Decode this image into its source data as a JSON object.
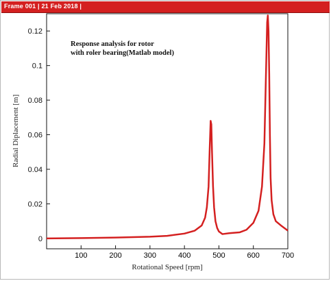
{
  "header": {
    "frame_label": "Frame 001",
    "date_label": "21 Feb 2018"
  },
  "colors": {
    "header_bg": "#d42020",
    "curve": "#d42020",
    "background": "#ffffff"
  },
  "chart_data": {
    "type": "line",
    "title_lines": [
      "Response analysis for rotor",
      "with roler bearing(Matlab model)"
    ],
    "xlabel": "Rotational Speed [rpm]",
    "ylabel": "Radial Diplacement [m]",
    "xlim": [
      0,
      700
    ],
    "ylim": [
      -0.006,
      0.13
    ],
    "xticks": [
      100,
      200,
      300,
      400,
      500,
      600,
      700
    ],
    "yticks": [
      0,
      0.02,
      0.04,
      0.06,
      0.08,
      0.1,
      0.12
    ],
    "ytick_labels": [
      "0",
      "0.02",
      "0.04",
      "0.06",
      "0.08",
      "0.1",
      "0.12"
    ],
    "grid": false,
    "legend": "none",
    "series": [
      {
        "x": [
          0,
          100,
          200,
          300,
          350,
          400,
          430,
          450,
          460,
          465,
          470,
          473,
          476,
          478,
          480,
          483,
          486,
          490,
          495,
          500,
          510,
          530,
          560,
          580,
          600,
          615,
          625,
          632,
          636,
          640,
          642,
          644,
          646,
          648,
          650,
          653,
          658,
          665,
          680,
          700
        ],
        "y": [
          0,
          0.0002,
          0.0005,
          0.001,
          0.0015,
          0.0028,
          0.0045,
          0.0075,
          0.012,
          0.018,
          0.03,
          0.05,
          0.068,
          0.066,
          0.05,
          0.03,
          0.018,
          0.01,
          0.006,
          0.004,
          0.0025,
          0.003,
          0.0035,
          0.005,
          0.009,
          0.016,
          0.03,
          0.055,
          0.09,
          0.125,
          0.129,
          0.12,
          0.095,
          0.06,
          0.035,
          0.022,
          0.014,
          0.01,
          0.0075,
          0.0045
        ]
      }
    ]
  }
}
